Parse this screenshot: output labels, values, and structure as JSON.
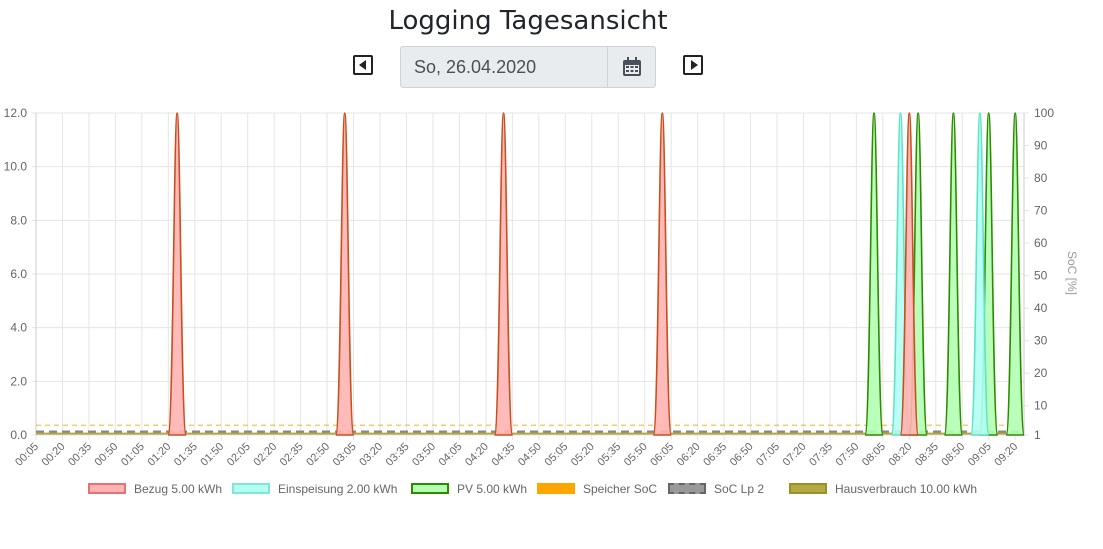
{
  "header": {
    "title": "Logging Tagesansicht"
  },
  "date_picker": {
    "value": "So, 26.04.2020"
  },
  "colors": {
    "bezug_fill": "#ffb3b3",
    "bezug_line": "#c8501e",
    "einspeisung_fill": "#b3fff2",
    "einspeisung_line": "#5fe3c8",
    "pv_fill": "#b3ffb3",
    "pv_line": "#2e8b00",
    "speicher": "#ffa500",
    "soc_lp2": "#888888",
    "hausverbrauch": "#b5a642",
    "grid": "#e5e5e5"
  },
  "legend": [
    {
      "label": "Bezug 5.00 kWh",
      "fill": "#ffb3b3",
      "stroke": "#e57373",
      "style": "solid"
    },
    {
      "label": "Einspeisung 2.00 kWh",
      "fill": "#b3fff2",
      "stroke": "#7ee8d8",
      "style": "solid"
    },
    {
      "label": "PV 5.00 kWh",
      "fill": "#b3ffb3",
      "stroke": "#2e8b00",
      "style": "solid"
    },
    {
      "label": "Speicher SoC",
      "fill": "#ffa500",
      "stroke": "#ffa500",
      "style": "dashed"
    },
    {
      "label": "SoC Lp 2",
      "fill": "#999999",
      "stroke": "#666666",
      "style": "dashed"
    },
    {
      "label": "Hausverbrauch 10.00 kWh",
      "fill": "#b5aa42",
      "stroke": "#9a8f2a",
      "style": "solid"
    }
  ],
  "chart_data": {
    "type": "area",
    "x_labels": [
      "00:05",
      "00:20",
      "00:35",
      "00:50",
      "01:05",
      "01:20",
      "01:35",
      "01:50",
      "02:05",
      "02:20",
      "02:35",
      "02:50",
      "03:05",
      "03:20",
      "03:35",
      "03:50",
      "04:05",
      "04:20",
      "04:35",
      "04:50",
      "05:05",
      "05:20",
      "05:35",
      "05:50",
      "06:05",
      "06:20",
      "06:35",
      "06:50",
      "07:05",
      "07:20",
      "07:35",
      "07:50",
      "08:05",
      "08:20",
      "08:35",
      "08:50",
      "09:05",
      "09:20"
    ],
    "x_range": [
      "00:05",
      "09:25"
    ],
    "y_left": {
      "ticks": [
        "0.0",
        "2.0",
        "4.0",
        "6.0",
        "8.0",
        "10.0",
        "12.0"
      ],
      "range": [
        0,
        12
      ]
    },
    "y_right": {
      "label": "SoC [%]",
      "ticks": [
        "1",
        "10",
        "20",
        "30",
        "40",
        "50",
        "60",
        "70",
        "80",
        "90",
        "100"
      ],
      "range": [
        1,
        100
      ]
    },
    "series": [
      {
        "name": "Bezug 5.00 kWh",
        "peaks": [
          {
            "time": "01:25",
            "value": 12
          },
          {
            "time": "03:00",
            "value": 12
          },
          {
            "time": "04:30",
            "value": 12
          },
          {
            "time": "06:00",
            "value": 12
          },
          {
            "time": "08:20",
            "value": 12
          }
        ]
      },
      {
        "name": "Einspeisung 2.00 kWh",
        "peaks": [
          {
            "time": "08:15",
            "value": 12
          },
          {
            "time": "09:00",
            "value": 12
          }
        ]
      },
      {
        "name": "PV 5.00 kWh",
        "peaks": [
          {
            "time": "08:00",
            "value": 12
          },
          {
            "time": "08:25",
            "value": 12
          },
          {
            "time": "08:45",
            "value": 12
          },
          {
            "time": "09:05",
            "value": 12
          },
          {
            "time": "09:20",
            "value": 12
          }
        ]
      },
      {
        "name": "Speicher SoC",
        "constant_percent": 4
      },
      {
        "name": "SoC Lp 2",
        "constant_percent": 2
      },
      {
        "name": "Hausverbrauch 10.00 kWh",
        "constant_value": 0.05
      }
    ],
    "grid": true,
    "legend_position": "bottom"
  }
}
